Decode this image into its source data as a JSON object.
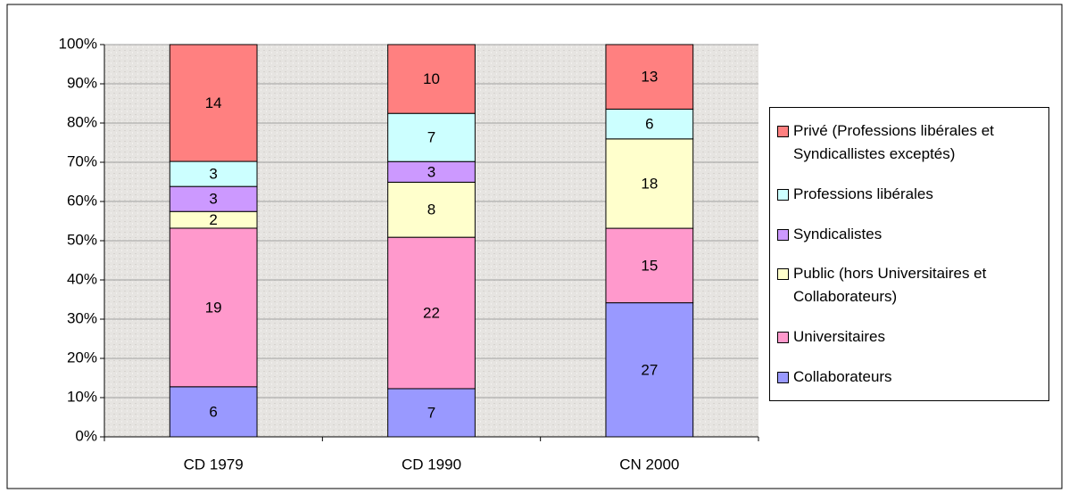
{
  "chart_data": {
    "type": "bar",
    "stacking": "percent",
    "categories": [
      "CD 1979",
      "CD 1990",
      "CN 2000"
    ],
    "series": [
      {
        "name": "Collaborateurs",
        "color": "#9999ff",
        "values": [
          6,
          7,
          27
        ]
      },
      {
        "name": "Universitaires",
        "color": "#ff99cc",
        "values": [
          19,
          22,
          15
        ]
      },
      {
        "name": "Public (hors Universitaires et Collaborateurs)",
        "color": "#ffffcc",
        "values": [
          2,
          8,
          18
        ]
      },
      {
        "name": "Syndicalistes",
        "color": "#cc99ff",
        "values": [
          3,
          3,
          0
        ]
      },
      {
        "name": "Professions libérales",
        "color": "#ccffff",
        "values": [
          3,
          7,
          6
        ]
      },
      {
        "name": "Privé (Professions libérales et Syndicallistes exceptés)",
        "color": "#ff8080",
        "values": [
          14,
          10,
          13
        ]
      }
    ],
    "ylim": [
      0,
      100
    ],
    "yticks": [
      {
        "value": 0,
        "label": "0%"
      },
      {
        "value": 10,
        "label": "10%"
      },
      {
        "value": 20,
        "label": "20%"
      },
      {
        "value": 30,
        "label": "30%"
      },
      {
        "value": 40,
        "label": "40%"
      },
      {
        "value": 50,
        "label": "50%"
      },
      {
        "value": 60,
        "label": "60%"
      },
      {
        "value": 70,
        "label": "70%"
      },
      {
        "value": 80,
        "label": "80%"
      },
      {
        "value": 90,
        "label": "90%"
      },
      {
        "value": 100,
        "label": "100%"
      }
    ],
    "grid": true,
    "legend": "right"
  }
}
